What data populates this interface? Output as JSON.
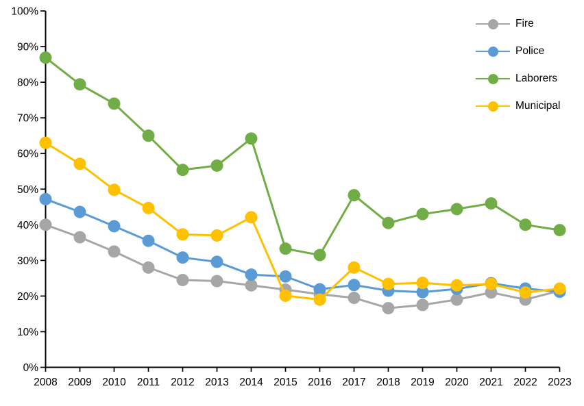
{
  "chart_data": {
    "type": "line",
    "title": "",
    "xlabel": "",
    "ylabel": "",
    "categories": [
      "2008",
      "2009",
      "2010",
      "2011",
      "2012",
      "2013",
      "2014",
      "2015",
      "2016",
      "2017",
      "2018",
      "2019",
      "2020",
      "2021",
      "2022",
      "2023"
    ],
    "series": [
      {
        "name": "Fire",
        "color": "#A6A6A6",
        "values": [
          40.0,
          36.5,
          32.5,
          28.0,
          24.5,
          24.2,
          23.0,
          21.8,
          20.5,
          19.5,
          16.6,
          17.5,
          19.0,
          21.0,
          19.0,
          21.5
        ]
      },
      {
        "name": "Police",
        "color": "#5B9BD5",
        "values": [
          47.2,
          43.6,
          39.6,
          35.5,
          30.8,
          29.6,
          26.0,
          25.5,
          21.9,
          23.1,
          21.5,
          21.1,
          22.0,
          23.6,
          22.1,
          21.2
        ]
      },
      {
        "name": "Laborers",
        "color": "#70AD47",
        "values": [
          86.9,
          79.4,
          74.0,
          65.0,
          55.4,
          56.6,
          64.2,
          33.3,
          31.5,
          48.3,
          40.5,
          43.0,
          44.4,
          46.0,
          40.0,
          38.5
        ]
      },
      {
        "name": "Municipal",
        "color": "#FFC000",
        "values": [
          63.0,
          57.1,
          49.8,
          44.7,
          37.3,
          37.0,
          42.1,
          20.1,
          19.0,
          28.0,
          23.4,
          23.7,
          23.0,
          23.4,
          21.0,
          22.1
        ]
      }
    ],
    "ylim": [
      0,
      100
    ],
    "y_tick_step": 10,
    "y_tick_suffix": "%",
    "y_tick_labels": [
      "0%",
      "10%",
      "20%",
      "30%",
      "40%",
      "50%",
      "60%",
      "70%",
      "80%",
      "90%",
      "100%"
    ],
    "grid": false,
    "legend_position": "top-right",
    "axis_color": "#000000",
    "marker": "circle"
  }
}
